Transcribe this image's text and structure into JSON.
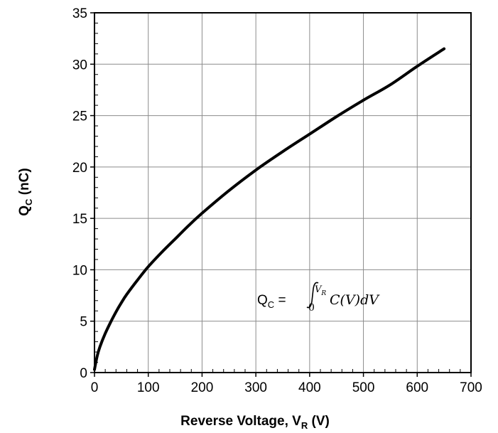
{
  "chart_data": {
    "type": "line",
    "title": "",
    "xlabel": "Reverse Voltage, V",
    "xlabel_sub": "R",
    "xlabel_unit": " (V)",
    "ylabel": "Q",
    "ylabel_sub": "C",
    "ylabel_unit": " (nC)",
    "xlim": [
      0,
      700
    ],
    "ylim": [
      0,
      35
    ],
    "xticks": [
      0,
      100,
      200,
      300,
      400,
      500,
      600,
      700
    ],
    "yticks": [
      0,
      5,
      10,
      15,
      20,
      25,
      30,
      35
    ],
    "grid": true,
    "series": [
      {
        "x": [
          0,
          5,
          10,
          20,
          30,
          40,
          50,
          60,
          80,
          100,
          125,
          150,
          175,
          200,
          250,
          300,
          350,
          400,
          450,
          500,
          550,
          600,
          650
        ],
        "y": [
          0.3,
          1.6,
          2.5,
          3.8,
          4.9,
          5.9,
          6.8,
          7.6,
          9.0,
          10.3,
          11.7,
          13.0,
          14.3,
          15.5,
          17.7,
          19.7,
          21.5,
          23.2,
          24.9,
          26.5,
          28.0,
          29.8,
          31.5
        ],
        "color": "#000000"
      }
    ],
    "annotation": {
      "lhs": "Q",
      "lhs_sub": "C",
      "equals": " =",
      "lower_limit": "0",
      "upper_limit": "V",
      "upper_limit_sub": "R",
      "integrand": "C(V)dV"
    }
  }
}
